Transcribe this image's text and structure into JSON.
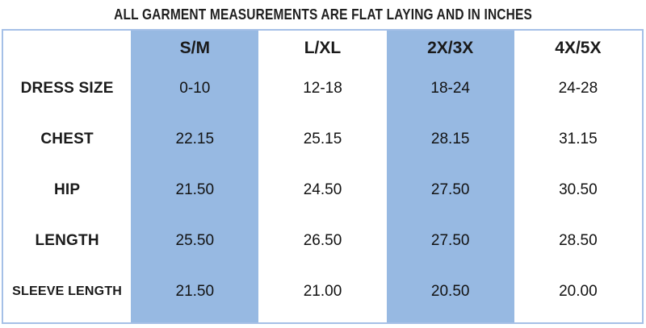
{
  "title": "ALL GARMENT MEASUREMENTS ARE FLAT LAYING AND IN INCHES",
  "table": {
    "columns": [
      "",
      "S/M",
      "L/XL",
      "2X/3X",
      "4X/5X"
    ],
    "highlighted_columns": [
      "S/M",
      "2X/3X"
    ],
    "rows": [
      {
        "label": "DRESS SIZE",
        "values": [
          "0-10",
          "12-18",
          "18-24",
          "24-28"
        ]
      },
      {
        "label": "CHEST",
        "values": [
          "22.15",
          "25.15",
          "28.15",
          "31.15"
        ]
      },
      {
        "label": "HIP",
        "values": [
          "21.50",
          "24.50",
          "27.50",
          "30.50"
        ]
      },
      {
        "label": "LENGTH",
        "values": [
          "25.50",
          "26.50",
          "27.50",
          "28.50"
        ]
      },
      {
        "label": "SLEEVE LENGTH",
        "values": [
          "21.50",
          "21.00",
          "20.50",
          "20.00"
        ]
      }
    ],
    "colors": {
      "highlight": "#97b9e2",
      "border": "#a5c0e7",
      "text": "#1a1a1a",
      "background": "#ffffff"
    },
    "units_note": "inches"
  },
  "chart_data": {
    "type": "table",
    "title": "ALL GARMENT MEASUREMENTS ARE FLAT LAYING AND IN INCHES",
    "columns": [
      "S/M",
      "L/XL",
      "2X/3X",
      "4X/5X"
    ],
    "rows": {
      "DRESS SIZE": [
        "0-10",
        "12-18",
        "18-24",
        "24-28"
      ],
      "CHEST": [
        22.15,
        25.15,
        28.15,
        31.15
      ],
      "HIP": [
        21.5,
        24.5,
        27.5,
        30.5
      ],
      "LENGTH": [
        25.5,
        26.5,
        27.5,
        28.5
      ],
      "SLEEVE LENGTH": [
        21.5,
        21.0,
        20.5,
        20.0
      ]
    }
  }
}
